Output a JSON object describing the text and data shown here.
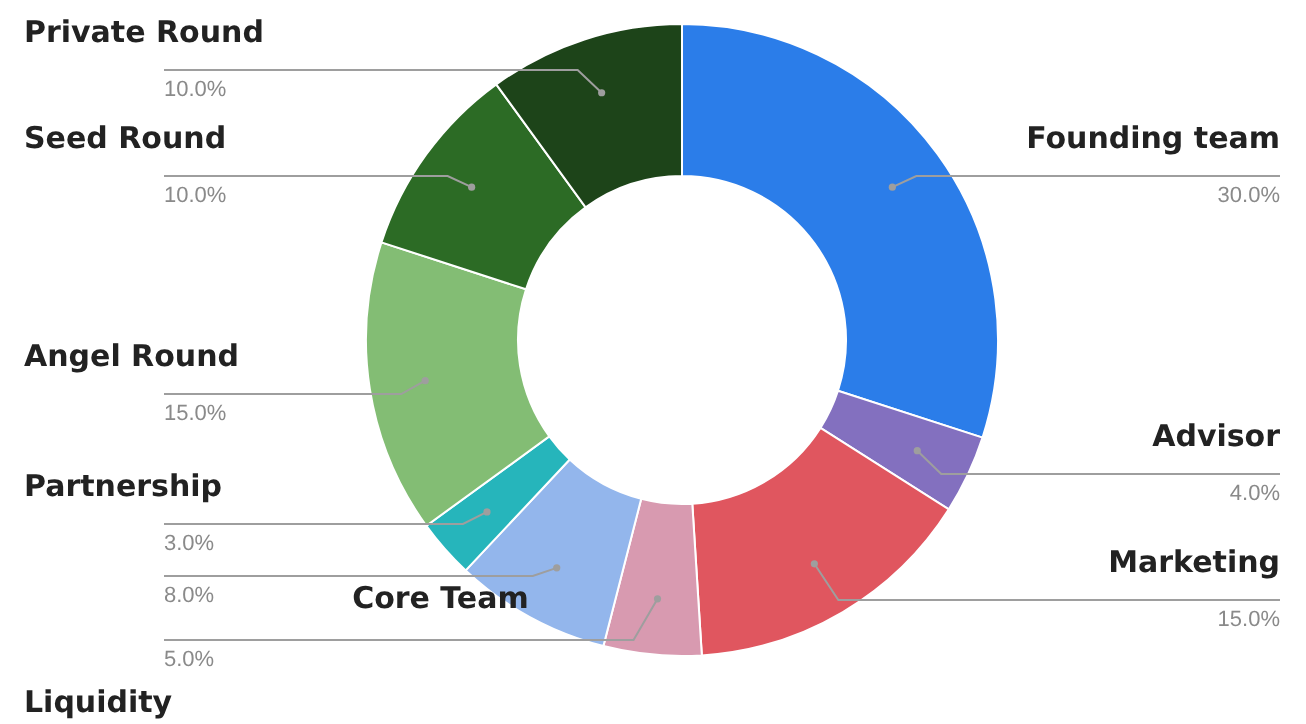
{
  "chart_data": {
    "type": "donut",
    "categories": [
      "Founding team",
      "Advisor",
      "Marketing",
      "Liquidity",
      "Core Team",
      "Partnership",
      "Angel Round",
      "Seed Round",
      "Private Round"
    ],
    "values": [
      30,
      4,
      15,
      5,
      8,
      3,
      15,
      10,
      10
    ],
    "value_labels": [
      "30.0%",
      "4.0%",
      "15.0%",
      "5.0%",
      "8.0%",
      "3.0%",
      "15.0%",
      "10.0%",
      "10.0%"
    ],
    "colors": [
      "#2b7de9",
      "#8370bf",
      "#e0565f",
      "#d89ab0",
      "#93b6ec",
      "#26b5bb",
      "#83bd74",
      "#2c6b25",
      "#1d4419"
    ]
  }
}
